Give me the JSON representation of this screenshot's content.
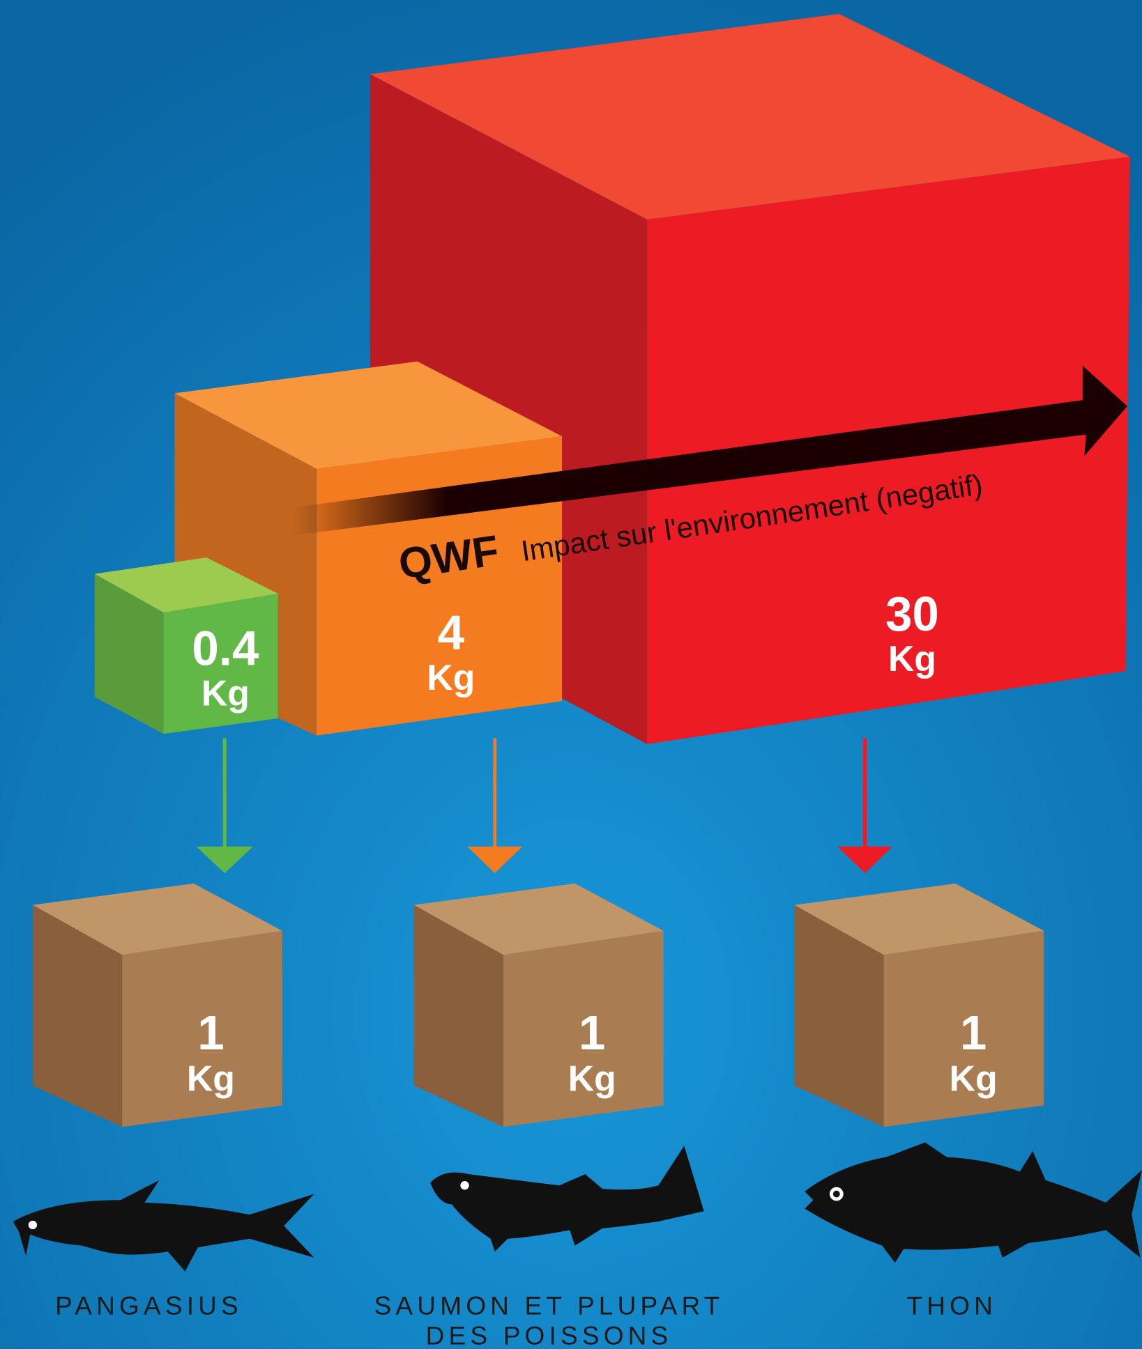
{
  "arrow": {
    "brand": "QWF",
    "label": "Impact sur l'environnement (negatif)"
  },
  "feed_boxes": [
    {
      "value": 0.4,
      "unit": "Kg"
    },
    {
      "value": 4,
      "unit": "Kg"
    },
    {
      "value": 30,
      "unit": "Kg"
    }
  ],
  "product_boxes": [
    {
      "value": 1,
      "unit": "Kg"
    },
    {
      "value": 1,
      "unit": "Kg"
    },
    {
      "value": 1,
      "unit": "Kg"
    }
  ],
  "fish": [
    {
      "name_lines": [
        "PANGASIUS"
      ]
    },
    {
      "name_lines": [
        "SAUMON ET PLUPART",
        "DES POISSONS"
      ]
    },
    {
      "name_lines": [
        "THON"
      ]
    }
  ]
}
